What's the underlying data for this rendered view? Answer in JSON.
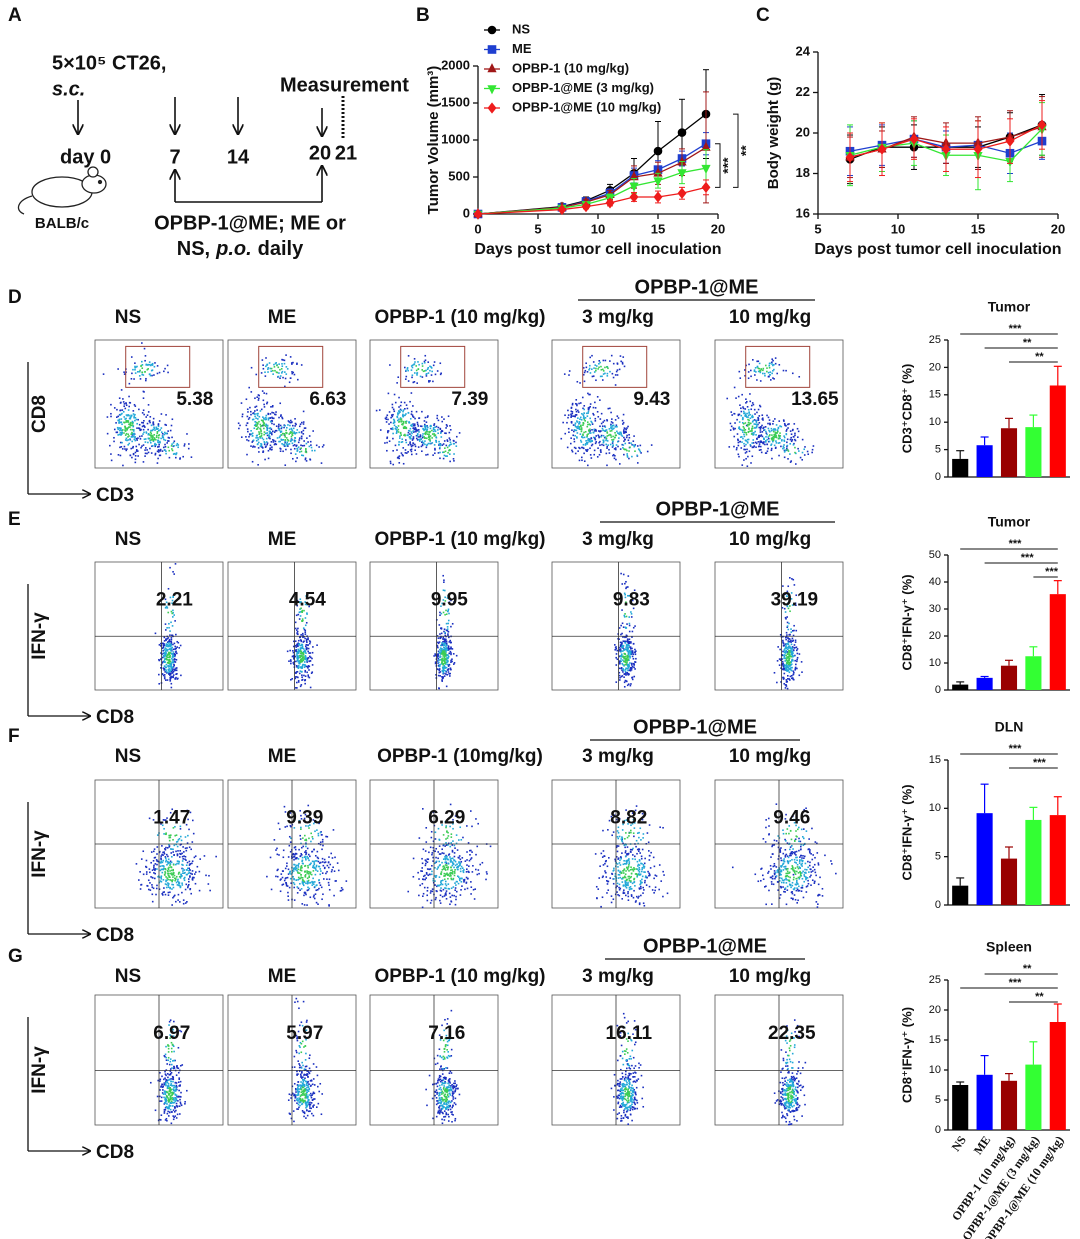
{
  "schematic": {
    "panel": "A",
    "cells": "5×10⁵ CT26,",
    "route": "s.c.",
    "days": [
      "day 0",
      "7",
      "14",
      "20",
      "21"
    ],
    "measurement": "Measurement",
    "mouse": "BALB/c",
    "treatment": "OPBP-1@ME; ME or",
    "treatment_prefix": "NS,",
    "treatment_route": "p.o.",
    "treatment_schedule": "daily"
  },
  "chart_data": [
    {
      "type": "line",
      "panel": "B",
      "xlabel": "Days post tumor cell inoculation",
      "ylabel": "Tumor Volume (mm³)",
      "x": [
        0,
        7,
        9,
        11,
        13,
        15,
        17,
        19
      ],
      "xlim": [
        0,
        20
      ],
      "xticks": [
        0,
        5,
        10,
        15,
        20
      ],
      "ylim": [
        0,
        2000
      ],
      "yticks": [
        0,
        500,
        1000,
        1500,
        2000
      ],
      "series": [
        {
          "name": "NS",
          "color": "#000000",
          "marker": "circle",
          "values": [
            0,
            100,
            180,
            320,
            550,
            850,
            1100,
            1350
          ],
          "errors": [
            0,
            30,
            50,
            80,
            200,
            400,
            450,
            600
          ]
        },
        {
          "name": "ME",
          "color": "#1f3fd0",
          "marker": "square",
          "values": [
            0,
            90,
            170,
            280,
            520,
            600,
            750,
            950
          ],
          "errors": [
            0,
            20,
            40,
            60,
            100,
            120,
            100,
            150
          ]
        },
        {
          "name": "OPBP-1 (10 mg/kg)",
          "color": "#a01818",
          "marker": "triangle",
          "values": [
            0,
            90,
            160,
            260,
            500,
            550,
            700,
            900
          ],
          "errors": [
            0,
            20,
            40,
            60,
            150,
            150,
            180,
            750
          ]
        },
        {
          "name": "OPBP-1@ME (3 mg/kg)",
          "color": "#33e633",
          "marker": "triangle-down",
          "values": [
            0,
            80,
            130,
            220,
            380,
            450,
            560,
            620
          ],
          "errors": [
            0,
            20,
            30,
            50,
            100,
            100,
            150,
            250
          ]
        },
        {
          "name": "OPBP-1@ME  (10 mg/kg)",
          "color": "#ee1c1c",
          "marker": "diamond",
          "values": [
            0,
            60,
            100,
            150,
            230,
            230,
            280,
            360
          ],
          "errors": [
            0,
            20,
            30,
            40,
            60,
            80,
            80,
            100
          ]
        }
      ],
      "annotations": [
        "***",
        "**"
      ]
    },
    {
      "type": "line",
      "panel": "C",
      "xlabel": "Days post tumor cell inoculation",
      "ylabel": "Body weight (g)",
      "x": [
        7,
        9,
        11,
        13,
        15,
        17,
        19
      ],
      "xlim": [
        5,
        20
      ],
      "xticks": [
        5,
        10,
        15,
        20
      ],
      "ylim": [
        16,
        24
      ],
      "yticks": [
        16,
        18,
        20,
        22,
        24
      ],
      "series": [
        {
          "color": "#000000",
          "marker": "circle",
          "values": [
            18.7,
            19.3,
            19.3,
            19.3,
            19.3,
            19.8,
            20.4
          ],
          "errors": [
            1.2,
            1.0,
            1.1,
            0.8,
            1.0,
            1.2,
            1.5
          ]
        },
        {
          "color": "#1f3fd0",
          "marker": "square",
          "values": [
            19.1,
            19.4,
            19.7,
            19.3,
            19.4,
            19.0,
            19.6
          ],
          "errors": [
            1.2,
            1.0,
            0.9,
            0.8,
            1.2,
            1.0,
            0.9
          ]
        },
        {
          "color": "#a01818",
          "marker": "triangle",
          "values": [
            18.8,
            19.2,
            19.8,
            19.5,
            19.5,
            19.8,
            20.3
          ],
          "errors": [
            1.0,
            0.9,
            1.0,
            1.0,
            1.3,
            1.3,
            1.5
          ]
        },
        {
          "color": "#33e633",
          "marker": "triangle-down",
          "values": [
            18.9,
            19.3,
            19.5,
            18.9,
            18.9,
            18.6,
            20.2
          ],
          "errors": [
            1.5,
            1.2,
            1.1,
            1.0,
            1.7,
            1.0,
            1.3
          ]
        },
        {
          "color": "#ee1c1c",
          "marker": "diamond",
          "values": [
            18.8,
            19.2,
            19.7,
            19.2,
            19.2,
            19.6,
            20.4
          ],
          "errors": [
            1.2,
            1.3,
            1.0,
            1.1,
            1.4,
            1.1,
            1.2
          ]
        }
      ]
    },
    {
      "type": "bar",
      "panel": "D",
      "title": "Tumor",
      "ylabel": "CD3⁺CD8⁺ (%)",
      "values": [
        3.3,
        5.8,
        8.9,
        9.1,
        16.7
      ],
      "errors": [
        1.5,
        1.5,
        1.8,
        2.2,
        3.5
      ],
      "colors": [
        "#000000",
        "#0000ff",
        "#990000",
        "#33ff33",
        "#ff0000"
      ],
      "ylim": [
        0,
        25
      ],
      "yticks": [
        0,
        5,
        10,
        15,
        20,
        25
      ],
      "brackets": [
        "***",
        "**",
        "**"
      ]
    },
    {
      "type": "bar",
      "panel": "E",
      "title": "Tumor",
      "ylabel": "CD8⁺IFN-γ⁺ (%)",
      "values": [
        2,
        4.5,
        9,
        12.5,
        35.5
      ],
      "errors": [
        1,
        0.5,
        2,
        3.5,
        5
      ],
      "colors": [
        "#000000",
        "#0000ff",
        "#990000",
        "#33ff33",
        "#ff0000"
      ],
      "ylim": [
        0,
        50
      ],
      "yticks": [
        0,
        10,
        20,
        30,
        40,
        50
      ],
      "brackets": [
        "***",
        "***",
        "***"
      ]
    },
    {
      "type": "bar",
      "panel": "F",
      "title": "DLN",
      "ylabel": "CD8⁺IFN-γ⁺ (%)",
      "values": [
        2,
        9.5,
        4.8,
        8.8,
        9.3
      ],
      "errors": [
        0.8,
        3,
        1.2,
        1.3,
        1.9
      ],
      "colors": [
        "#000000",
        "#0000ff",
        "#990000",
        "#33ff33",
        "#ff0000"
      ],
      "ylim": [
        0,
        15
      ],
      "yticks": [
        0,
        5,
        10,
        15
      ],
      "brackets": [
        "***",
        "***"
      ]
    },
    {
      "type": "bar",
      "panel": "G",
      "title": "Spleen",
      "ylabel": "CD8⁺IFN-γ⁺ (%)",
      "categories": [
        "NS",
        "ME",
        "OPBP-1 (10 mg/kg)",
        "OPBP-1@ME (3 mg/kg)",
        "OPBP-1@ME (10 mg/kg)"
      ],
      "values": [
        7.5,
        9.2,
        8.2,
        10.9,
        18
      ],
      "errors": [
        0.5,
        3.2,
        1.2,
        3.8,
        3
      ],
      "colors": [
        "#000000",
        "#0000ff",
        "#990000",
        "#33ff33",
        "#ff0000"
      ],
      "ylim": [
        0,
        25
      ],
      "yticks": [
        0,
        5,
        10,
        15,
        20,
        25
      ],
      "brackets": [
        "**",
        "***",
        "**"
      ]
    }
  ],
  "flow_cytometry": [
    {
      "panel": "D",
      "header": "OPBP-1@ME",
      "y_axis": "CD8",
      "x_axis": "CD3",
      "plots": [
        {
          "title": "NS",
          "value": "5.38"
        },
        {
          "title": "ME",
          "value": "6.63"
        },
        {
          "title": "OPBP-1 (10 mg/kg)",
          "value": "7.39"
        },
        {
          "title": "3 mg/kg",
          "value": "9.43"
        },
        {
          "title": "10 mg/kg",
          "value": "13.65"
        }
      ]
    },
    {
      "panel": "E",
      "header": "OPBP-1@ME",
      "y_axis": "IFN-γ",
      "x_axis": "CD8",
      "plots": [
        {
          "title": "NS",
          "value": "2.21"
        },
        {
          "title": "ME",
          "value": "4.54"
        },
        {
          "title": "OPBP-1 (10 mg/kg)",
          "value": "9.95"
        },
        {
          "title": "3 mg/kg",
          "value": "9.83"
        },
        {
          "title": "10 mg/kg",
          "value": "39.19"
        }
      ]
    },
    {
      "panel": "F",
      "header": "OPBP-1@ME",
      "y_axis": "IFN-γ",
      "x_axis": "CD8",
      "plots": [
        {
          "title": "NS",
          "value": "1.47"
        },
        {
          "title": "ME",
          "value": "9.39"
        },
        {
          "title": "OPBP-1 (10mg/kg)",
          "value": "6.29"
        },
        {
          "title": "3 mg/kg",
          "value": "8.82"
        },
        {
          "title": "10 mg/kg",
          "value": "9.46"
        }
      ]
    },
    {
      "panel": "G",
      "header": "OPBP-1@ME",
      "y_axis": "IFN-γ",
      "x_axis": "CD8",
      "plots": [
        {
          "title": "NS",
          "value": "6.97"
        },
        {
          "title": "ME",
          "value": "5.97"
        },
        {
          "title": "OPBP-1 (10 mg/kg)",
          "value": "7.16"
        },
        {
          "title": "3 mg/kg",
          "value": "16.11"
        },
        {
          "title": "10 mg/kg",
          "value": "22.35"
        }
      ]
    }
  ]
}
